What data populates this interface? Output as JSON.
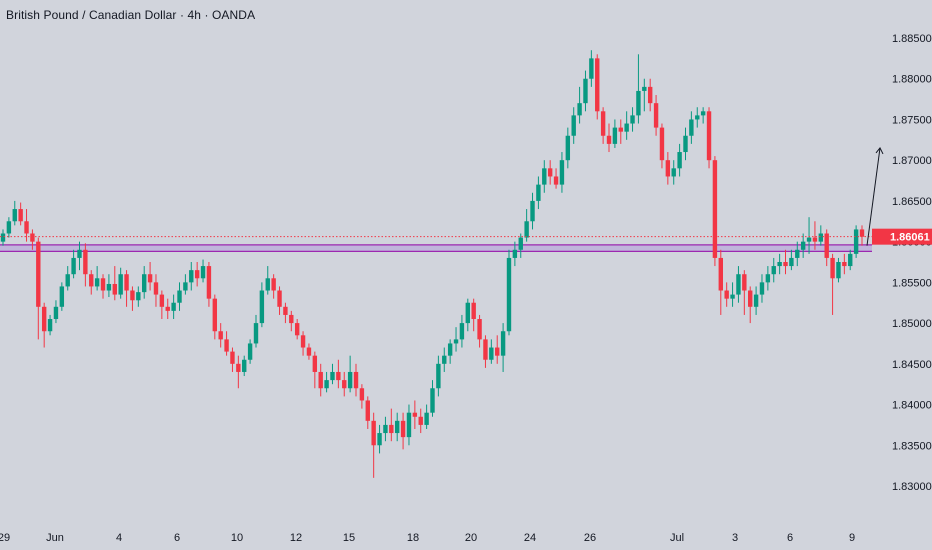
{
  "header": {
    "title": "British Pound / Canadian Dollar · 4h · OANDA"
  },
  "price_axis": {
    "labels": [
      "1.88500",
      "1.88000",
      "1.87500",
      "1.87000",
      "1.86500",
      "1.86000",
      "1.85500",
      "1.85000",
      "1.84500",
      "1.84000",
      "1.83500",
      "1.83000"
    ]
  },
  "current_price": {
    "label": "1.86061",
    "color": "#f23645"
  },
  "time_axis": {
    "labels": [
      "29",
      "Jun",
      "4",
      "6",
      "10",
      "12",
      "15",
      "18",
      "20",
      "24",
      "26",
      "Jul",
      "3",
      "6",
      "9"
    ]
  },
  "zone": {
    "color": "#9c27b0"
  },
  "colors": {
    "up": "#089981",
    "down": "#f23645",
    "background": "#d1d4dc"
  },
  "chart_data": {
    "type": "candlestick",
    "title": "British Pound / Canadian Dollar · 4h · OANDA",
    "ylim": [
      1.828,
      1.888
    ],
    "resistance_zone": [
      1.8588,
      1.8596
    ],
    "current_price": 1.86061,
    "projection": "up-arrow",
    "candles": [
      [
        1.86,
        1.861,
        1.8595,
        1.8615
      ],
      [
        1.861,
        1.8625,
        1.8605,
        1.863
      ],
      [
        1.8625,
        1.864,
        1.862,
        1.865
      ],
      [
        1.864,
        1.8625,
        1.862,
        1.8648
      ],
      [
        1.8625,
        1.861,
        1.86,
        1.864
      ],
      [
        1.861,
        1.86,
        1.859,
        1.8615
      ],
      [
        1.86,
        1.852,
        1.848,
        1.8605
      ],
      [
        1.852,
        1.849,
        1.847,
        1.8525
      ],
      [
        1.849,
        1.8505,
        1.8485,
        1.851
      ],
      [
        1.8505,
        1.852,
        1.85,
        1.8528
      ],
      [
        1.852,
        1.8545,
        1.8515,
        1.855
      ],
      [
        1.8545,
        1.856,
        1.854,
        1.857
      ],
      [
        1.856,
        1.858,
        1.8555,
        1.859
      ],
      [
        1.858,
        1.859,
        1.8565,
        1.86
      ],
      [
        1.859,
        1.856,
        1.8545,
        1.8598
      ],
      [
        1.856,
        1.8545,
        1.8535,
        1.8565
      ],
      [
        1.8545,
        1.8555,
        1.854,
        1.857
      ],
      [
        1.8555,
        1.854,
        1.853,
        1.856
      ],
      [
        1.854,
        1.8548,
        1.8532,
        1.856
      ],
      [
        1.8548,
        1.8535,
        1.8528,
        1.857
      ],
      [
        1.8535,
        1.856,
        1.853,
        1.8568
      ],
      [
        1.856,
        1.854,
        1.852,
        1.8565
      ],
      [
        1.854,
        1.8528,
        1.8515,
        1.8545
      ],
      [
        1.8528,
        1.8538,
        1.852,
        1.8545
      ],
      [
        1.8538,
        1.856,
        1.853,
        1.857
      ],
      [
        1.856,
        1.855,
        1.854,
        1.8575
      ],
      [
        1.855,
        1.8535,
        1.852,
        1.856
      ],
      [
        1.8535,
        1.852,
        1.8505,
        1.854
      ],
      [
        1.852,
        1.8515,
        1.8505,
        1.853
      ],
      [
        1.8515,
        1.8525,
        1.8505,
        1.8535
      ],
      [
        1.8525,
        1.854,
        1.8515,
        1.855
      ],
      [
        1.854,
        1.855,
        1.8535,
        1.856
      ],
      [
        1.855,
        1.8565,
        1.854,
        1.8575
      ],
      [
        1.8565,
        1.8555,
        1.8545,
        1.8575
      ],
      [
        1.8555,
        1.857,
        1.855,
        1.8578
      ],
      [
        1.857,
        1.853,
        1.852,
        1.8575
      ],
      [
        1.853,
        1.849,
        1.848,
        1.8535
      ],
      [
        1.849,
        1.848,
        1.847,
        1.85
      ],
      [
        1.848,
        1.8465,
        1.846,
        1.849
      ],
      [
        1.8465,
        1.845,
        1.844,
        1.847
      ],
      [
        1.845,
        1.844,
        1.842,
        1.846
      ],
      [
        1.844,
        1.8455,
        1.8435,
        1.846
      ],
      [
        1.8455,
        1.8475,
        1.845,
        1.848
      ],
      [
        1.8475,
        1.85,
        1.847,
        1.851
      ],
      [
        1.85,
        1.854,
        1.8495,
        1.855
      ],
      [
        1.854,
        1.8555,
        1.8535,
        1.857
      ],
      [
        1.8555,
        1.854,
        1.853,
        1.856
      ],
      [
        1.854,
        1.852,
        1.851,
        1.8545
      ],
      [
        1.852,
        1.851,
        1.85,
        1.8525
      ],
      [
        1.851,
        1.85,
        1.849,
        1.8515
      ],
      [
        1.85,
        1.8485,
        1.848,
        1.8505
      ],
      [
        1.8485,
        1.847,
        1.846,
        1.849
      ],
      [
        1.847,
        1.846,
        1.8455,
        1.8475
      ],
      [
        1.846,
        1.844,
        1.842,
        1.8465
      ],
      [
        1.844,
        1.842,
        1.841,
        1.845
      ],
      [
        1.842,
        1.843,
        1.8415,
        1.844
      ],
      [
        1.843,
        1.844,
        1.8425,
        1.845
      ],
      [
        1.844,
        1.843,
        1.842,
        1.8455
      ],
      [
        1.843,
        1.842,
        1.841,
        1.844
      ],
      [
        1.842,
        1.844,
        1.8415,
        1.846
      ],
      [
        1.844,
        1.842,
        1.841,
        1.845
      ],
      [
        1.842,
        1.8405,
        1.8395,
        1.8425
      ],
      [
        1.8405,
        1.838,
        1.837,
        1.841
      ],
      [
        1.838,
        1.835,
        1.831,
        1.839
      ],
      [
        1.835,
        1.8365,
        1.834,
        1.8375
      ],
      [
        1.8365,
        1.8375,
        1.8355,
        1.8385
      ],
      [
        1.8375,
        1.8365,
        1.8355,
        1.8395
      ],
      [
        1.8365,
        1.838,
        1.8355,
        1.839
      ],
      [
        1.838,
        1.836,
        1.8345,
        1.839
      ],
      [
        1.836,
        1.839,
        1.835,
        1.84
      ],
      [
        1.839,
        1.8385,
        1.837,
        1.8405
      ],
      [
        1.8385,
        1.8375,
        1.8365,
        1.8395
      ],
      [
        1.8375,
        1.839,
        1.837,
        1.84
      ],
      [
        1.839,
        1.842,
        1.8385,
        1.843
      ],
      [
        1.842,
        1.845,
        1.841,
        1.846
      ],
      [
        1.845,
        1.846,
        1.844,
        1.847
      ],
      [
        1.846,
        1.8475,
        1.845,
        1.848
      ],
      [
        1.8475,
        1.848,
        1.8465,
        1.8495
      ],
      [
        1.848,
        1.85,
        1.847,
        1.851
      ],
      [
        1.85,
        1.8525,
        1.849,
        1.853
      ],
      [
        1.8525,
        1.8505,
        1.849,
        1.853
      ],
      [
        1.8505,
        1.848,
        1.847,
        1.851
      ],
      [
        1.848,
        1.8455,
        1.8445,
        1.8485
      ],
      [
        1.8455,
        1.847,
        1.845,
        1.848
      ],
      [
        1.847,
        1.846,
        1.845,
        1.8485
      ],
      [
        1.846,
        1.849,
        1.844,
        1.85
      ],
      [
        1.849,
        1.858,
        1.8485,
        1.859
      ],
      [
        1.858,
        1.859,
        1.857,
        1.86
      ],
      [
        1.859,
        1.8605,
        1.858,
        1.861
      ],
      [
        1.8605,
        1.8625,
        1.86,
        1.864
      ],
      [
        1.8625,
        1.865,
        1.8615,
        1.866
      ],
      [
        1.865,
        1.867,
        1.864,
        1.868
      ],
      [
        1.867,
        1.869,
        1.866,
        1.87
      ],
      [
        1.869,
        1.868,
        1.867,
        1.87
      ],
      [
        1.868,
        1.867,
        1.8665,
        1.869
      ],
      [
        1.867,
        1.87,
        1.866,
        1.871
      ],
      [
        1.87,
        1.873,
        1.869,
        1.874
      ],
      [
        1.873,
        1.8755,
        1.872,
        1.8765
      ],
      [
        1.8755,
        1.877,
        1.8745,
        1.879
      ],
      [
        1.877,
        1.88,
        1.876,
        1.881
      ],
      [
        1.88,
        1.8825,
        1.879,
        1.8835
      ],
      [
        1.8825,
        1.876,
        1.875,
        1.883
      ],
      [
        1.876,
        1.873,
        1.872,
        1.8765
      ],
      [
        1.873,
        1.872,
        1.871,
        1.8745
      ],
      [
        1.872,
        1.874,
        1.8715,
        1.875
      ],
      [
        1.874,
        1.8735,
        1.872,
        1.875
      ],
      [
        1.8735,
        1.8745,
        1.8725,
        1.876
      ],
      [
        1.8745,
        1.8755,
        1.8735,
        1.8765
      ],
      [
        1.8755,
        1.8785,
        1.8745,
        1.883
      ],
      [
        1.8785,
        1.879,
        1.876,
        1.88
      ],
      [
        1.879,
        1.877,
        1.876,
        1.88
      ],
      [
        1.877,
        1.874,
        1.873,
        1.878
      ],
      [
        1.874,
        1.87,
        1.869,
        1.8745
      ],
      [
        1.87,
        1.868,
        1.867,
        1.871
      ],
      [
        1.868,
        1.869,
        1.867,
        1.87
      ],
      [
        1.869,
        1.871,
        1.868,
        1.872
      ],
      [
        1.871,
        1.873,
        1.87,
        1.874
      ],
      [
        1.873,
        1.875,
        1.872,
        1.876
      ],
      [
        1.875,
        1.8755,
        1.874,
        1.8765
      ],
      [
        1.8755,
        1.876,
        1.8745,
        1.8765
      ],
      [
        1.876,
        1.87,
        1.869,
        1.8765
      ],
      [
        1.87,
        1.858,
        1.857,
        1.8705
      ],
      [
        1.858,
        1.854,
        1.851,
        1.859
      ],
      [
        1.854,
        1.853,
        1.852,
        1.855
      ],
      [
        1.853,
        1.8535,
        1.852,
        1.855
      ],
      [
        1.8535,
        1.856,
        1.8525,
        1.857
      ],
      [
        1.856,
        1.854,
        1.851,
        1.8565
      ],
      [
        1.854,
        1.852,
        1.85,
        1.8545
      ],
      [
        1.852,
        1.8535,
        1.851,
        1.8545
      ],
      [
        1.8535,
        1.855,
        1.8525,
        1.856
      ],
      [
        1.855,
        1.856,
        1.854,
        1.857
      ],
      [
        1.856,
        1.857,
        1.855,
        1.858
      ],
      [
        1.857,
        1.8575,
        1.856,
        1.8585
      ],
      [
        1.8575,
        1.857,
        1.856,
        1.859
      ],
      [
        1.857,
        1.858,
        1.8565,
        1.859
      ],
      [
        1.858,
        1.859,
        1.857,
        1.86
      ],
      [
        1.859,
        1.86,
        1.858,
        1.861
      ],
      [
        1.86,
        1.8605,
        1.8585,
        1.863
      ],
      [
        1.8605,
        1.86,
        1.859,
        1.8625
      ],
      [
        1.86,
        1.861,
        1.8595,
        1.862
      ],
      [
        1.861,
        1.858,
        1.857,
        1.8615
      ],
      [
        1.858,
        1.8555,
        1.851,
        1.8585
      ],
      [
        1.8555,
        1.8575,
        1.855,
        1.858
      ],
      [
        1.8575,
        1.857,
        1.856,
        1.8585
      ],
      [
        1.857,
        1.8585,
        1.8565,
        1.859
      ],
      [
        1.8585,
        1.8615,
        1.858,
        1.862
      ],
      [
        1.8615,
        1.8606,
        1.8595,
        1.862
      ]
    ]
  }
}
